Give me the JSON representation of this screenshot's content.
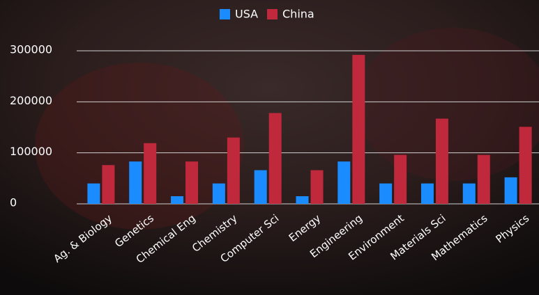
{
  "chart_data": {
    "type": "bar",
    "categories": [
      "Ag. & Biology",
      "Genetics",
      "Chemical Eng",
      "Chemistry",
      "Computer Sci",
      "Energy",
      "Engineering",
      "Environment",
      "Materials Sci",
      "Mathematics",
      "Physics"
    ],
    "series": [
      {
        "name": "USA",
        "color": "#1a8cff",
        "values": [
          40000,
          83000,
          15000,
          40000,
          66000,
          15000,
          83000,
          40000,
          40000,
          40000,
          52000
        ]
      },
      {
        "name": "China",
        "color": "#c0283c",
        "values": [
          76000,
          119000,
          83000,
          130000,
          178000,
          66000,
          292000,
          96000,
          167000,
          96000,
          151000
        ]
      }
    ],
    "ylim": [
      0,
      300000
    ],
    "yticks": [
      0,
      100000,
      200000,
      300000
    ],
    "grid": true,
    "legend": "top"
  }
}
